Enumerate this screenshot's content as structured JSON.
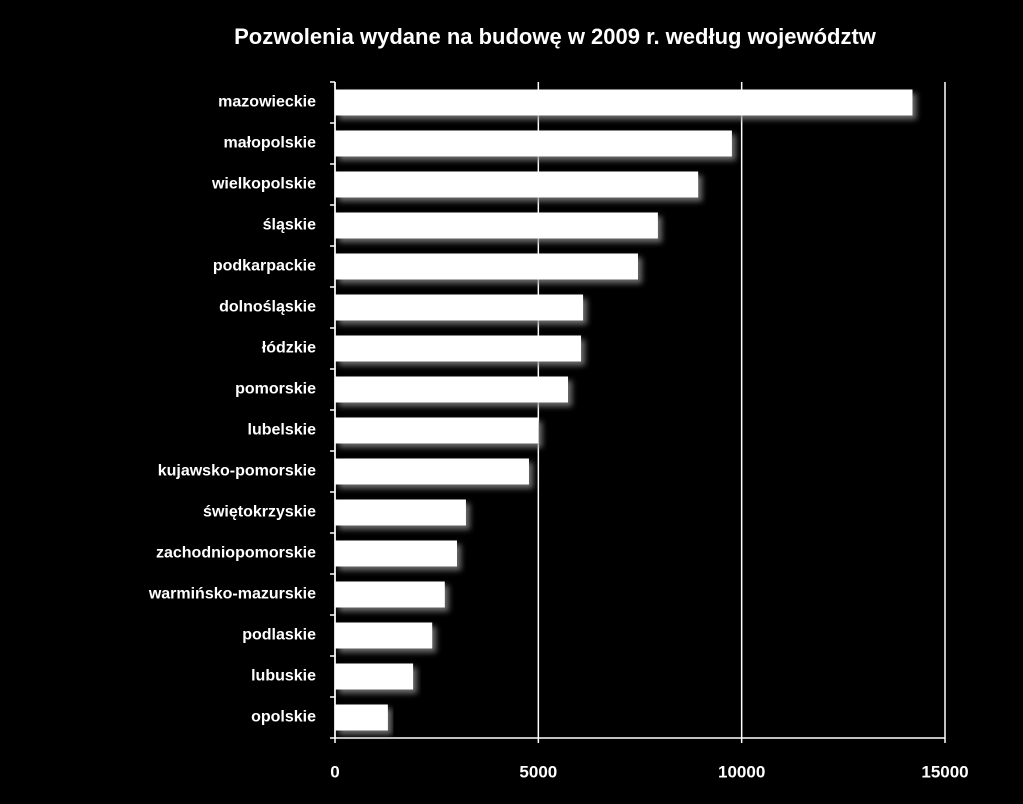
{
  "chart_data": {
    "type": "bar",
    "orientation": "horizontal",
    "title": "Pozwolenia wydane  na budowę  w 2009  r. według  województw",
    "categories": [
      "mazowieckie",
      "małopolskie",
      "wielkopolskie",
      "śląskie",
      "podkarpackie",
      "dolnośląskie",
      "łódzkie",
      "pomorskie",
      "lubelskie",
      "kujawsko-pomorskie",
      "świętokrzyskie",
      "zachodniopomorskie",
      "warmińsko-mazurskie",
      "podlaskie",
      "lubuskie",
      "opolskie"
    ],
    "values": [
      14200,
      9760,
      8930,
      7940,
      7450,
      6100,
      6050,
      5730,
      5000,
      4770,
      3220,
      3000,
      2700,
      2390,
      1920,
      1300
    ],
    "color": "#ffffff",
    "xlim": [
      0,
      15000
    ],
    "xticks": [
      0,
      5000,
      10000,
      15000
    ],
    "grid": true
  }
}
